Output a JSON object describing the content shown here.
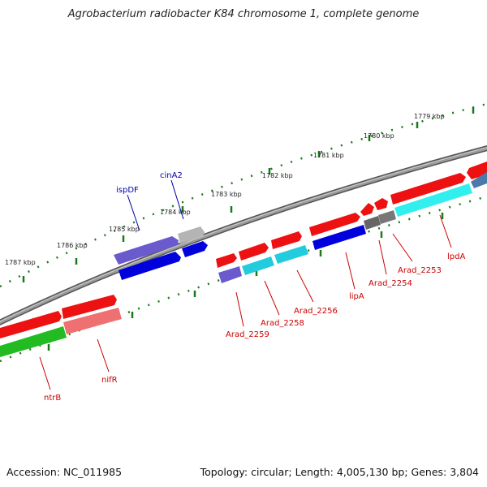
{
  "title": "Agrobacterium radiobacter K84 chromosome 1, complete genome",
  "footer": {
    "accession": "Accession: NC_011985",
    "summary": "Topology: circular; Length: 4,005,130 bp; Genes: 3,804"
  },
  "ruler_labels": [
    "1779 kbp",
    "1780 kbp",
    "1781 kbp",
    "1782 kbp",
    "1783 kbp",
    "1784 kbp",
    "1785 kbp",
    "1786 kbp",
    "1787 kbp"
  ],
  "gene_labels": [
    "cinA2",
    "ispDF",
    "lpdA",
    "Arad_2253",
    "Arad_2254",
    "lipA",
    "Arad_2256",
    "Arad_2258",
    "Arad_2259",
    "nifR",
    "ntrB"
  ],
  "colors": {
    "backbone": "#7a7a7a",
    "ruler_ticks": "#1a7a1a",
    "label_red": "#cc0000",
    "label_blue": "#0000aa",
    "gene_red": "#ee1111",
    "gene_blue": "#0000dd",
    "gene_cyan": "#22ccdd",
    "gene_lightcyan": "#33eeee",
    "gene_purple": "#6a5acd",
    "gene_gray": "#666666",
    "gene_green": "#22bb22",
    "gene_pink": "#ee7070",
    "gene_lightgray": "#b4b4b4",
    "gene_steel": "#4a7aaa"
  }
}
